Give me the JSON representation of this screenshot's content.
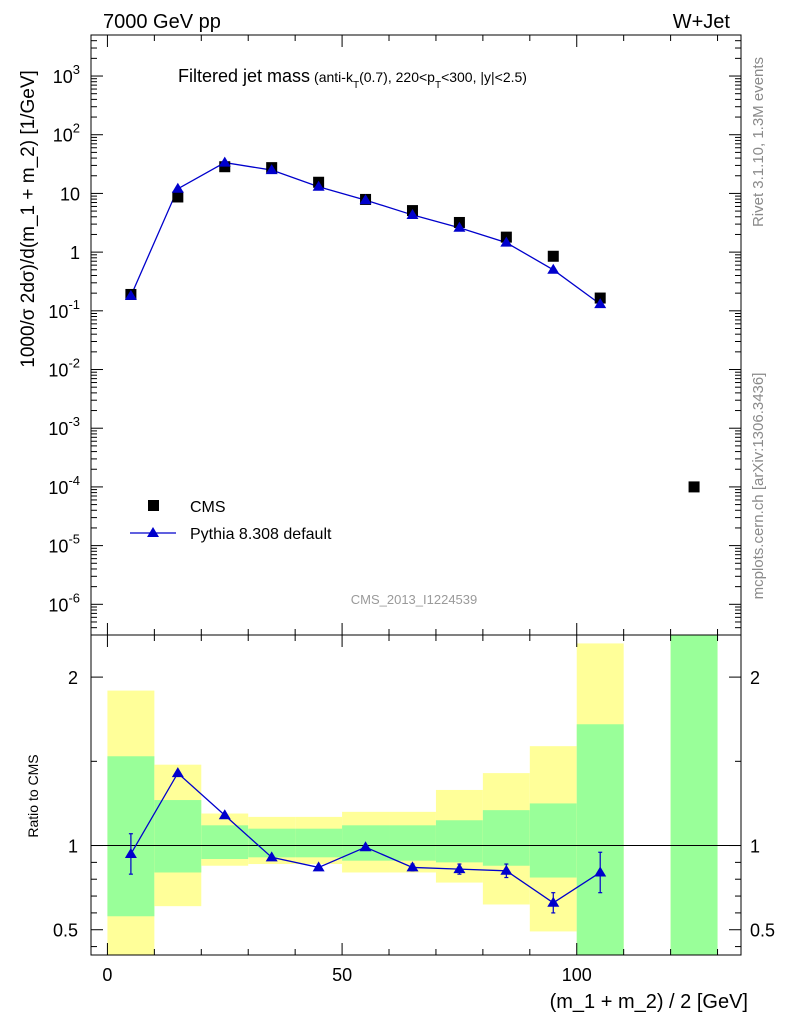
{
  "header": {
    "left": "7000 GeV pp",
    "right": "W+Jet"
  },
  "plot_title": {
    "main": "Filtered jet mass",
    "sub_parts": [
      "(anti-k",
      "T",
      "(0.7), 220<p",
      "T",
      "<300, |y|<2.5)"
    ]
  },
  "side_text": {
    "rivet": "Rivet 3.1.10,  1.3M events",
    "mcplots": "mcplots.cern.ch [arXiv:1306.3436]"
  },
  "watermark": "CMS_2013_I1224539",
  "legend": {
    "data_label": "CMS",
    "mc_label": "Pythia 8.308 default"
  },
  "colors": {
    "mc_line": "#0000cc",
    "data_marker": "#000000",
    "band_inner": "#99ff99",
    "band_outer": "#ffff99"
  },
  "chart_data": [
    {
      "type": "line",
      "ylabel": "1000/σ 2dσ)/d(m_1 + m_2) [1/GeV]",
      "yscale": "log",
      "ylim": [
        3e-07,
        5000
      ],
      "xlim": [
        -3.5,
        135
      ],
      "y_ticks": [
        {
          "base": "10",
          "exp": "-6",
          "v": 1e-06
        },
        {
          "base": "10",
          "exp": "-5",
          "v": 1e-05
        },
        {
          "base": "10",
          "exp": "-4",
          "v": 0.0001
        },
        {
          "base": "10",
          "exp": "-3",
          "v": 0.001
        },
        {
          "base": "10",
          "exp": "-2",
          "v": 0.01
        },
        {
          "base": "10",
          "exp": "-1",
          "v": 0.1
        },
        {
          "base": "1",
          "exp": "",
          "v": 1
        },
        {
          "base": "10",
          "exp": "",
          "v": 10
        },
        {
          "base": "10",
          "exp": "2",
          "v": 100
        },
        {
          "base": "10",
          "exp": "3",
          "v": 1000
        }
      ],
      "series": [
        {
          "name": "CMS",
          "x": [
            5,
            15,
            25,
            35,
            45,
            55,
            65,
            75,
            85,
            95,
            105,
            125
          ],
          "y": [
            0.19,
            8.7,
            28.5,
            27.5,
            15.5,
            7.9,
            5.1,
            3.2,
            1.8,
            0.85,
            0.165,
            0.0001
          ]
        },
        {
          "name": "Pythia 8.308 default",
          "x": [
            5,
            15,
            25,
            35,
            45,
            55,
            65,
            75,
            85,
            95,
            105
          ],
          "y": [
            0.18,
            12.0,
            33.5,
            25.0,
            13.0,
            7.7,
            4.3,
            2.6,
            1.45,
            0.5,
            0.13
          ]
        }
      ]
    },
    {
      "type": "line",
      "ylabel": "Ratio to CMS",
      "xlabel": "(m_1 + m_2) / 2 [GeV]",
      "xlim": [
        -3.5,
        135
      ],
      "ylim": [
        0.35,
        2.25
      ],
      "x_ticks": [
        "0",
        "50",
        "100"
      ],
      "y_ticks": [
        "0.5",
        "1",
        "2"
      ],
      "ratio": {
        "x": [
          5,
          15,
          25,
          35,
          45,
          55,
          65,
          75,
          85,
          95,
          105
        ],
        "y": [
          0.95,
          1.43,
          1.18,
          0.93,
          0.87,
          0.99,
          0.87,
          0.86,
          0.85,
          0.66,
          0.84
        ],
        "err": [
          0.12,
          0.0,
          0.0,
          0.0,
          0.0,
          0.0,
          0.02,
          0.03,
          0.04,
          0.06,
          0.12
        ]
      },
      "bands": [
        {
          "x0": 0,
          "x1": 10,
          "inner": [
            0.58,
            1.53
          ],
          "outer": [
            0.35,
            1.92
          ]
        },
        {
          "x0": 10,
          "x1": 20,
          "inner": [
            0.84,
            1.27
          ],
          "outer": [
            0.64,
            1.48
          ]
        },
        {
          "x0": 20,
          "x1": 30,
          "inner": [
            0.92,
            1.12
          ],
          "outer": [
            0.88,
            1.19
          ]
        },
        {
          "x0": 30,
          "x1": 40,
          "inner": [
            0.93,
            1.1
          ],
          "outer": [
            0.89,
            1.17
          ]
        },
        {
          "x0": 40,
          "x1": 50,
          "inner": [
            0.93,
            1.1
          ],
          "outer": [
            0.89,
            1.17
          ]
        },
        {
          "x0": 50,
          "x1": 60,
          "inner": [
            0.91,
            1.12
          ],
          "outer": [
            0.84,
            1.2
          ]
        },
        {
          "x0": 60,
          "x1": 70,
          "inner": [
            0.91,
            1.12
          ],
          "outer": [
            0.84,
            1.2
          ]
        },
        {
          "x0": 70,
          "x1": 80,
          "inner": [
            0.9,
            1.15
          ],
          "outer": [
            0.78,
            1.33
          ]
        },
        {
          "x0": 80,
          "x1": 90,
          "inner": [
            0.88,
            1.21
          ],
          "outer": [
            0.65,
            1.43
          ]
        },
        {
          "x0": 90,
          "x1": 100,
          "inner": [
            0.81,
            1.25
          ],
          "outer": [
            0.49,
            1.59
          ]
        },
        {
          "x0": 100,
          "x1": 110,
          "inner": [
            0.35,
            1.72
          ],
          "outer": [
            0.35,
            2.2
          ]
        },
        {
          "x0": 120,
          "x1": 130,
          "inner": [
            0.35,
            2.25
          ],
          "outer": [
            0.35,
            2.25
          ]
        }
      ]
    }
  ]
}
